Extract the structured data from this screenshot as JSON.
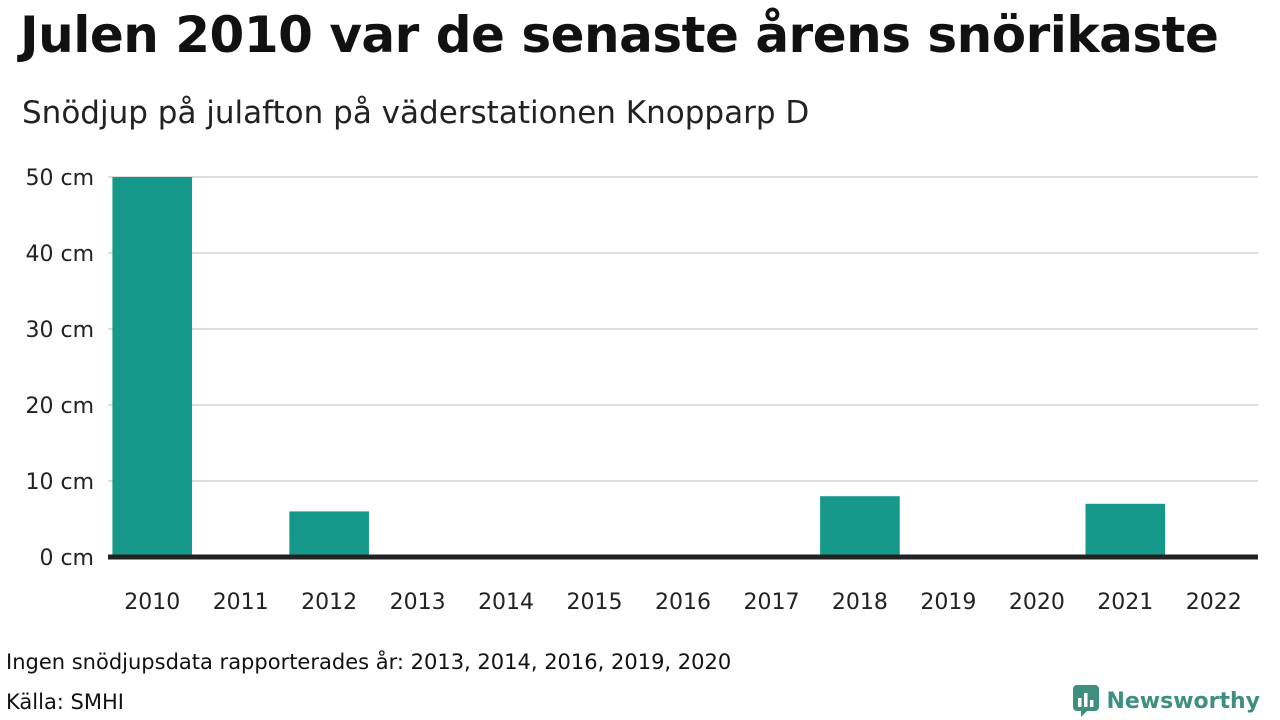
{
  "title": "Julen 2010 var de senaste årens snörikaste",
  "subtitle": "Snödjup på julafton på väderstationen Knopparp D",
  "note": "Ingen snödjupsdata rapporterades år: 2013, 2014, 2016, 2019, 2020",
  "source": "Källa: SMHI",
  "brand": {
    "name": "Newsworthy",
    "icon": "bar-chart-logo-icon",
    "color": "#3f8f80"
  },
  "colors": {
    "bar": "#16988a",
    "grid": "#dddddd",
    "axis": "#222222",
    "text": "#222222"
  },
  "chart_data": {
    "type": "bar",
    "categories": [
      "2010",
      "2011",
      "2012",
      "2013",
      "2014",
      "2015",
      "2016",
      "2017",
      "2018",
      "2019",
      "2020",
      "2021",
      "2022"
    ],
    "values": [
      50,
      0,
      6,
      null,
      null,
      0,
      null,
      0,
      8,
      null,
      null,
      7,
      0
    ],
    "ylim": [
      0,
      50
    ],
    "yticks": [
      0,
      10,
      20,
      30,
      40,
      50
    ],
    "y_unit": " cm",
    "xlabel": "",
    "ylabel": "",
    "grid": true
  }
}
